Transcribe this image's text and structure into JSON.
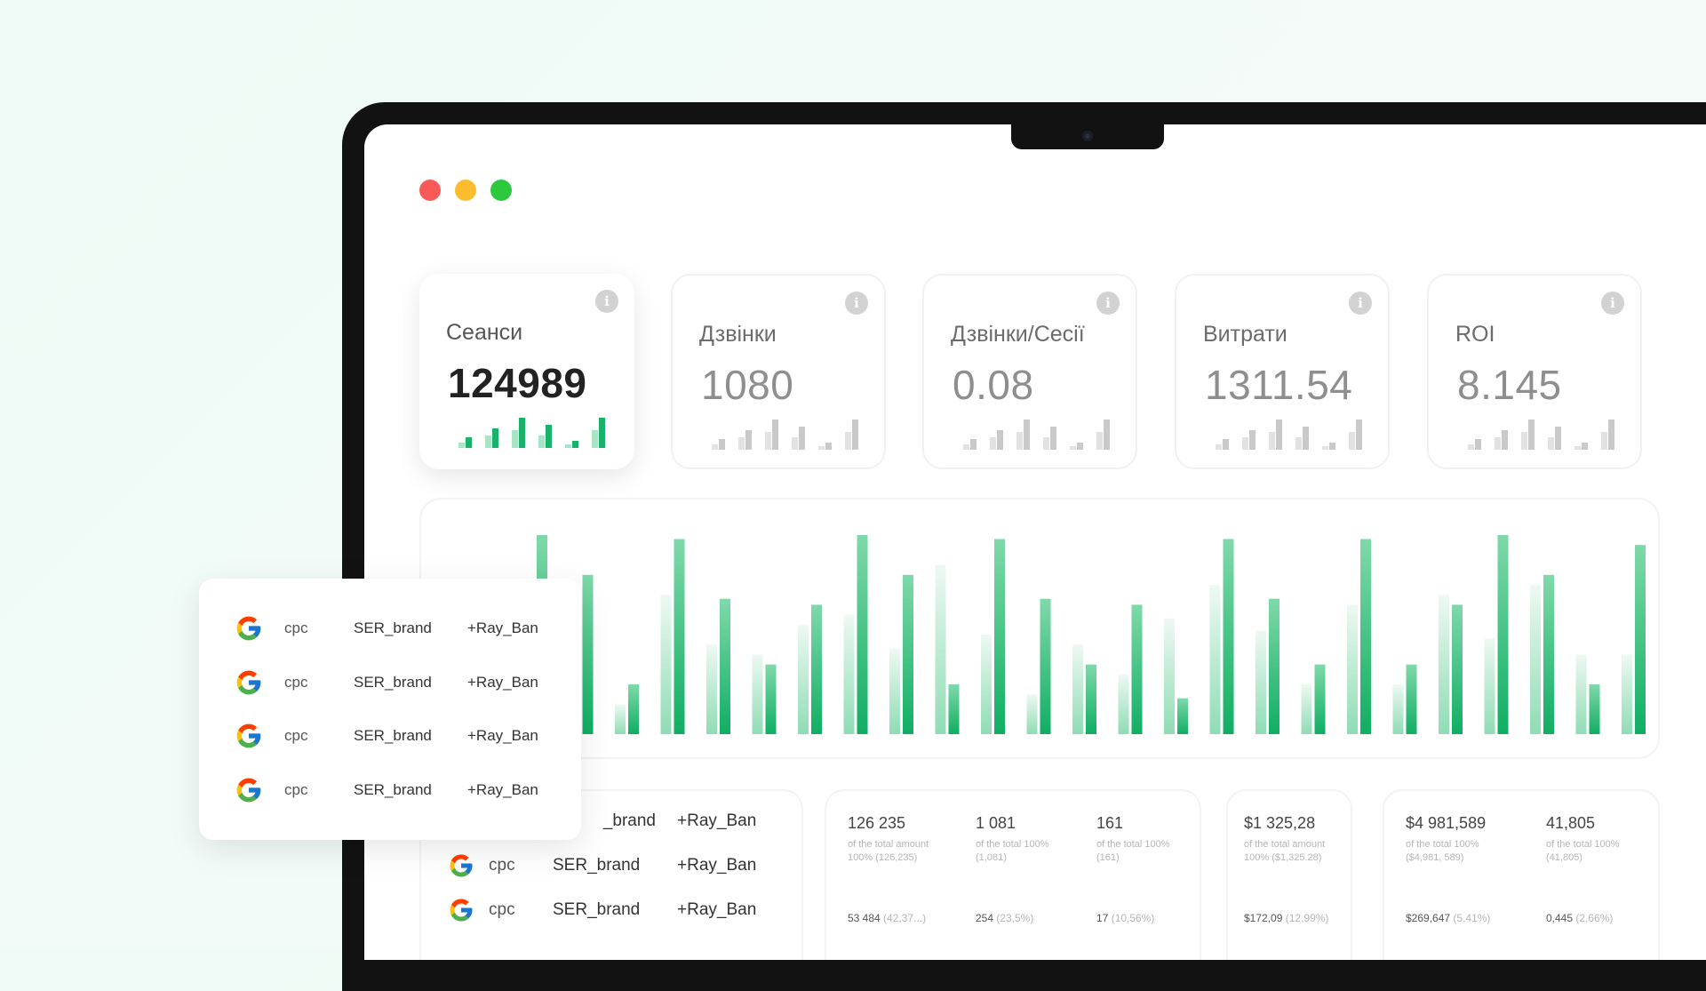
{
  "kpis": [
    {
      "label": "Сеанси",
      "value": "124989",
      "active": true
    },
    {
      "label": "Дзвінки",
      "value": "1080",
      "active": false
    },
    {
      "label": "Дзвінки/Сесії",
      "value": "0.08",
      "active": false
    },
    {
      "label": "Витрати",
      "value": "1311.54",
      "active": false
    },
    {
      "label": "ROI",
      "value": "8.145",
      "active": false
    }
  ],
  "info_icon_glyph": "i",
  "colors": {
    "accent": "#1ab26b",
    "accent_light": "#a8e5c6",
    "muted_bar": "#c9c9c9"
  },
  "chart_data": {
    "type": "bar",
    "series": [
      {
        "values": [
          95,
          55,
          15,
          70,
          45,
          40,
          55,
          60,
          43,
          85,
          50,
          20,
          45,
          30,
          58,
          75,
          52,
          25,
          65,
          25,
          70,
          48,
          75,
          40,
          40,
          60,
          60
        ]
      },
      {
        "values": [
          100,
          80,
          25,
          98,
          68,
          35,
          65,
          100,
          80,
          25,
          98,
          68,
          35,
          65,
          18,
          98,
          68,
          35,
          98,
          35,
          65,
          100,
          80,
          25,
          95,
          100,
          98
        ]
      }
    ]
  },
  "table_rows": [
    {
      "source": "google",
      "medium": "cpc",
      "campaign": "SER_brand",
      "keyword": "+Ray_Ban"
    },
    {
      "source": "google",
      "medium": "cpc",
      "campaign": "SER_brand",
      "keyword": "+Ray_Ban"
    },
    {
      "source": "google",
      "medium": "cpc",
      "campaign": "SER_brand",
      "keyword": "+Ray_Ban"
    }
  ],
  "table_row0_campaign_partial": "_brand",
  "stats_group1": [
    {
      "big": "126 235",
      "small": "of the total amount 100% (126,235)",
      "foot": "53 484",
      "foot_pct": "(42,37...)"
    },
    {
      "big": "1 081",
      "small": "of the total 100% (1,081)",
      "foot": "254",
      "foot_pct": "(23,5%)"
    },
    {
      "big": "161",
      "small": "of the total 100% (161)",
      "foot": "17",
      "foot_pct": "(10,56%)"
    }
  ],
  "stats_group2": [
    {
      "big": "$1 325,28",
      "small": "of the total amount 100% ($1,325.28)",
      "foot": "$172,09",
      "foot_pct": "(12,99%)"
    }
  ],
  "stats_group3": [
    {
      "big": "$4 981,589",
      "small": "of the total 100% ($4,981, 589)",
      "foot": "$269,647",
      "foot_pct": "(5,41%)"
    },
    {
      "big": "41,805",
      "small": "of the total 100% (41,805)",
      "foot": "0,445",
      "foot_pct": "(2,66%)"
    }
  ],
  "popup_rows": [
    {
      "source": "google",
      "medium": "cpc",
      "campaign": "SER_brand",
      "keyword": "+Ray_Ban"
    },
    {
      "source": "google",
      "medium": "cpc",
      "campaign": "SER_brand",
      "keyword": "+Ray_Ban"
    },
    {
      "source": "google",
      "medium": "cpc",
      "campaign": "SER_brand",
      "keyword": "+Ray_Ban"
    },
    {
      "source": "google",
      "medium": "cpc",
      "campaign": "SER_brand",
      "keyword": "+Ray_Ban"
    }
  ]
}
